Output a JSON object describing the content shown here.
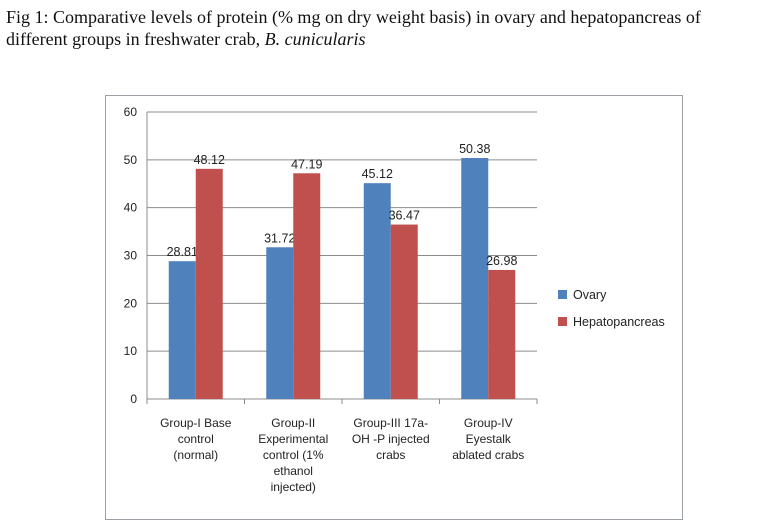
{
  "caption": {
    "text_main": "Fig 1: Comparative levels of protein (% mg on dry weight basis) in ovary and hepatopancreas of different groups in freshwater crab, ",
    "species": "B. cunicularis"
  },
  "chart_data": {
    "type": "bar",
    "categories": [
      [
        "Group-I Base",
        "control",
        "(normal)"
      ],
      [
        "Group-II",
        "Experimental",
        "control (1%",
        "ethanol",
        "injected)"
      ],
      [
        "Group-III 17a-",
        "OH -P injected",
        "crabs"
      ],
      [
        "Group-IV",
        "Eyestalk",
        "ablated crabs"
      ]
    ],
    "series": [
      {
        "name": "Ovary",
        "values": [
          28.81,
          31.72,
          45.12,
          50.38
        ],
        "labels": [
          "28.81",
          "31.72",
          "45.12",
          "50.38"
        ],
        "color": "#4f81bd"
      },
      {
        "name": "Hepatopancreas",
        "values": [
          48.12,
          47.19,
          36.47,
          26.98
        ],
        "labels": [
          "48.12",
          "47.19",
          "36.47",
          "26.98"
        ],
        "color": "#c0504d"
      }
    ],
    "ylim": [
      0,
      60
    ],
    "yticks": [
      0,
      10,
      20,
      30,
      40,
      50,
      60
    ],
    "grid": true,
    "legend": "right"
  }
}
